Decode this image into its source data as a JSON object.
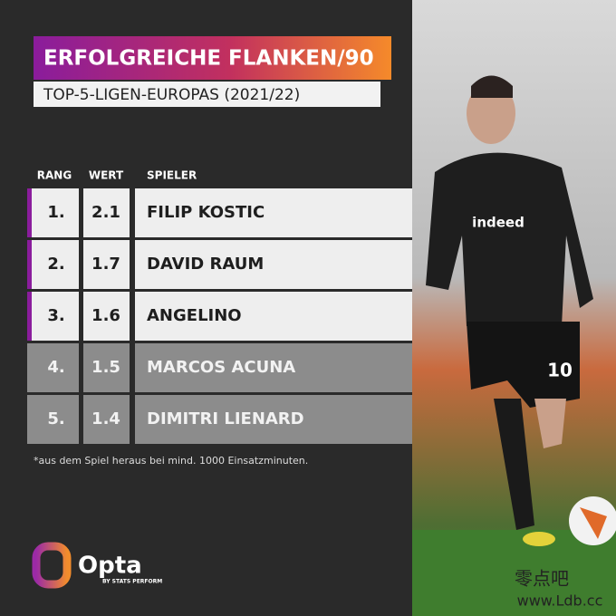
{
  "header": {
    "title": "ERFOLGREICHE FLANKEN/90",
    "subtitle": "TOP-5-LIGEN-EUROPAS (2021/22)"
  },
  "table": {
    "columns": [
      "RANG",
      "WERT",
      "SPIELER"
    ],
    "rows": [
      [
        "1.",
        2.1,
        "FILIP KOSTIC"
      ],
      [
        "2.",
        1.7,
        "DAVID RAUM"
      ],
      [
        "3.",
        1.6,
        "ANGELINO"
      ],
      [
        "4.",
        1.5,
        "MARCOS ACUNA"
      ],
      [
        "5.",
        1.4,
        "DIMITRI LIENARD"
      ]
    ]
  },
  "footnote": "*aus dem Spiel heraus bei mind. 1000 Einsatzminuten.",
  "logo": {
    "name": "Opta",
    "tagline": "BY STATS PERFORM"
  },
  "watermark": {
    "name": "零点吧",
    "url": "www.Ldb.cc"
  }
}
